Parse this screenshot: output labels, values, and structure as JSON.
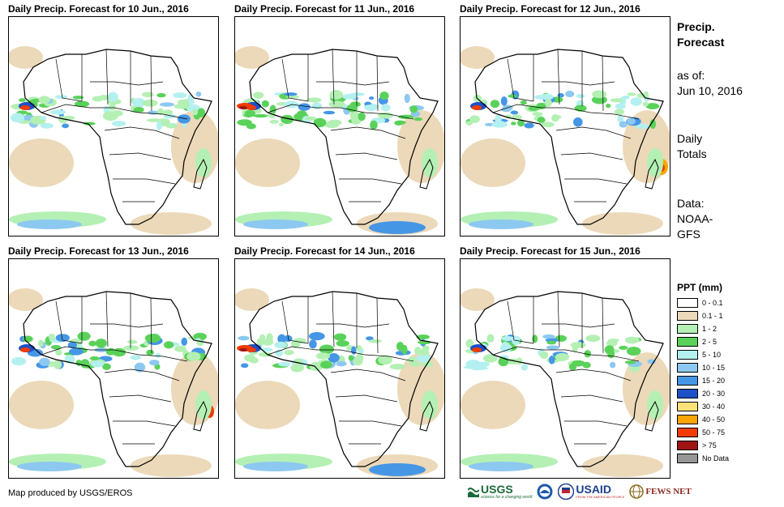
{
  "panels": [
    {
      "title": "Daily Precip. Forecast for 10 Jun., 2016"
    },
    {
      "title": "Daily Precip. Forecast for 11 Jun., 2016"
    },
    {
      "title": "Daily Precip. Forecast for 12 Jun., 2016"
    },
    {
      "title": "Daily Precip. Forecast for 13 Jun., 2016"
    },
    {
      "title": "Daily Precip. Forecast for 14 Jun., 2016"
    },
    {
      "title": "Daily Precip. Forecast for 15 Jun., 2016"
    }
  ],
  "sidebar": {
    "heading_line1": "Precip.",
    "heading_line2": "Forecast",
    "asof_label": "as of:",
    "asof_date": "Jun 10, 2016",
    "totals_line1": "Daily",
    "totals_line2": "Totals",
    "data_line1": "Data:",
    "data_line2": "NOAA-",
    "data_line3": "GFS"
  },
  "legend": {
    "title": "PPT (mm)",
    "items": [
      {
        "label": "0 - 0.1",
        "color": "#ffffff"
      },
      {
        "label": "0.1 - 1",
        "color": "#ecd9b9"
      },
      {
        "label": "1 - 2",
        "color": "#b4f0b4"
      },
      {
        "label": "2 - 5",
        "color": "#5ad25a"
      },
      {
        "label": "5 - 10",
        "color": "#b4f0f0"
      },
      {
        "label": "10 - 15",
        "color": "#8cc8f0"
      },
      {
        "label": "15 - 20",
        "color": "#4696e6"
      },
      {
        "label": "20 - 30",
        "color": "#1e50c8"
      },
      {
        "label": "30 - 40",
        "color": "#fae178"
      },
      {
        "label": "40 - 50",
        "color": "#faa500"
      },
      {
        "label": "50 - 75",
        "color": "#f03c00"
      },
      {
        "label": "> 75",
        "color": "#a01414"
      },
      {
        "label": "No Data",
        "color": "#969696"
      }
    ]
  },
  "footer": {
    "credit": "Map produced by USGS/EROS",
    "logos": {
      "usgs": "USGS",
      "usgs_tagline": "science for a changing world",
      "usaid": "USAID",
      "usaid_tagline": "FROM THE AMERICAN PEOPLE",
      "fews": "FEWS NET"
    }
  }
}
